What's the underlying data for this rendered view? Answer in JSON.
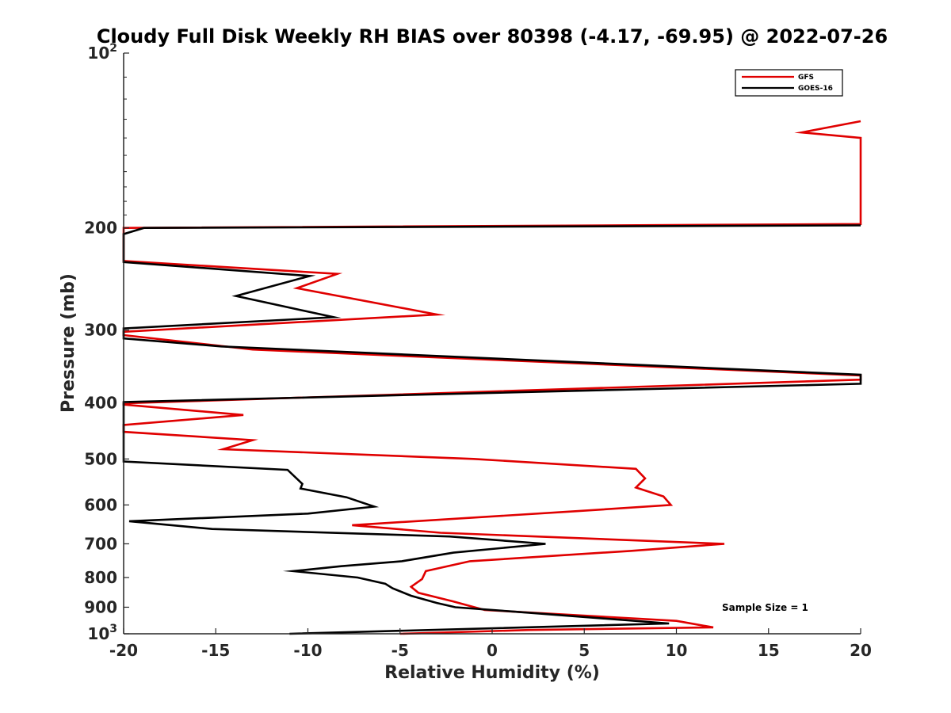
{
  "chart_data": {
    "type": "line",
    "title": "Cloudy Full Disk Weekly RH BIAS over 80398 (-4.17, -69.95) @ 2022-07-26",
    "xlabel": "Relative Humidity (%)",
    "ylabel": "Pressure (mb)",
    "xlim": [
      -20,
      20
    ],
    "ylim": [
      100,
      1000
    ],
    "yscale": "log",
    "y_reversed": true,
    "x_ticks": [
      "-20",
      "-15",
      "-10",
      "-5",
      "0",
      "5",
      "10",
      "15",
      "20"
    ],
    "y_ticks": [
      {
        "value": 100,
        "base": "10",
        "exp": "2"
      },
      {
        "value": 200,
        "label": "200"
      },
      {
        "value": 300,
        "label": "300"
      },
      {
        "value": 400,
        "label": "400"
      },
      {
        "value": 500,
        "label": "500"
      },
      {
        "value": 600,
        "label": "600"
      },
      {
        "value": 700,
        "label": "700"
      },
      {
        "value": 800,
        "label": "800"
      },
      {
        "value": 900,
        "label": "900"
      },
      {
        "value": 1000,
        "base": "10",
        "exp": "3"
      }
    ],
    "legend_position": "top-right",
    "series": [
      {
        "name": "GFS",
        "color": "#e00000",
        "points": [
          [
            20,
            131
          ],
          [
            16.8,
            137
          ],
          [
            20,
            140
          ],
          [
            20,
            197
          ],
          [
            -20,
            200
          ],
          [
            -20,
            228
          ],
          [
            -8.4,
            240
          ],
          [
            -10.6,
            254
          ],
          [
            -3.0,
            282
          ],
          [
            -20,
            302
          ],
          [
            -20,
            306
          ],
          [
            -13.0,
            324
          ],
          [
            20,
            359
          ],
          [
            20,
            365
          ],
          [
            -20,
            401
          ],
          [
            -20,
            403
          ],
          [
            -13.5,
            420
          ],
          [
            -20,
            437
          ],
          [
            -20,
            449
          ],
          [
            -13.0,
            464
          ],
          [
            -14.6,
            481
          ],
          [
            -1.0,
            500
          ],
          [
            7.8,
            520
          ],
          [
            8.3,
            540
          ],
          [
            7.8,
            560
          ],
          [
            9.3,
            580
          ],
          [
            9.7,
            600
          ],
          [
            4.6,
            615
          ],
          [
            -7.6,
            650
          ],
          [
            -2.8,
            670
          ],
          [
            12.6,
            700
          ],
          [
            7.5,
            720
          ],
          [
            -1.2,
            750
          ],
          [
            -3.6,
            780
          ],
          [
            -3.8,
            805
          ],
          [
            -4.4,
            830
          ],
          [
            -4.0,
            850
          ],
          [
            -2.1,
            880
          ],
          [
            -0.4,
            910
          ],
          [
            10.0,
            950
          ],
          [
            12.0,
            975
          ],
          [
            2.0,
            985
          ],
          [
            -5.0,
            1000
          ]
        ]
      },
      {
        "name": "GOES-16",
        "color": "#000000",
        "points": [
          [
            20,
            198
          ],
          [
            -18.9,
            200
          ],
          [
            -20,
            205
          ],
          [
            -20,
            229
          ],
          [
            -9.9,
            242
          ],
          [
            -13.9,
            262
          ],
          [
            -8.6,
            285
          ],
          [
            -20,
            298
          ],
          [
            -20,
            310
          ],
          [
            -14.7,
            320
          ],
          [
            20,
            358
          ],
          [
            20,
            371
          ],
          [
            -20,
            399
          ],
          [
            -20,
            505
          ],
          [
            -11.1,
            522
          ],
          [
            -10.3,
            552
          ],
          [
            -10.4,
            562
          ],
          [
            -7.9,
            582
          ],
          [
            -6.4,
            604
          ],
          [
            -10.0,
            621
          ],
          [
            -19.7,
            640
          ],
          [
            -15.2,
            660
          ],
          [
            -2.3,
            680
          ],
          [
            2.9,
            700
          ],
          [
            -2.1,
            725
          ],
          [
            -4.9,
            750
          ],
          [
            -8.2,
            765
          ],
          [
            -10.8,
            780
          ],
          [
            -7.3,
            800
          ],
          [
            -5.8,
            820
          ],
          [
            -5.4,
            835
          ],
          [
            -4.4,
            860
          ],
          [
            -3.0,
            885
          ],
          [
            -2.0,
            900
          ],
          [
            1.0,
            915
          ],
          [
            9.6,
            960
          ],
          [
            -11.0,
            1000
          ]
        ]
      }
    ],
    "annotations": [
      "Sample Size = 1"
    ]
  }
}
